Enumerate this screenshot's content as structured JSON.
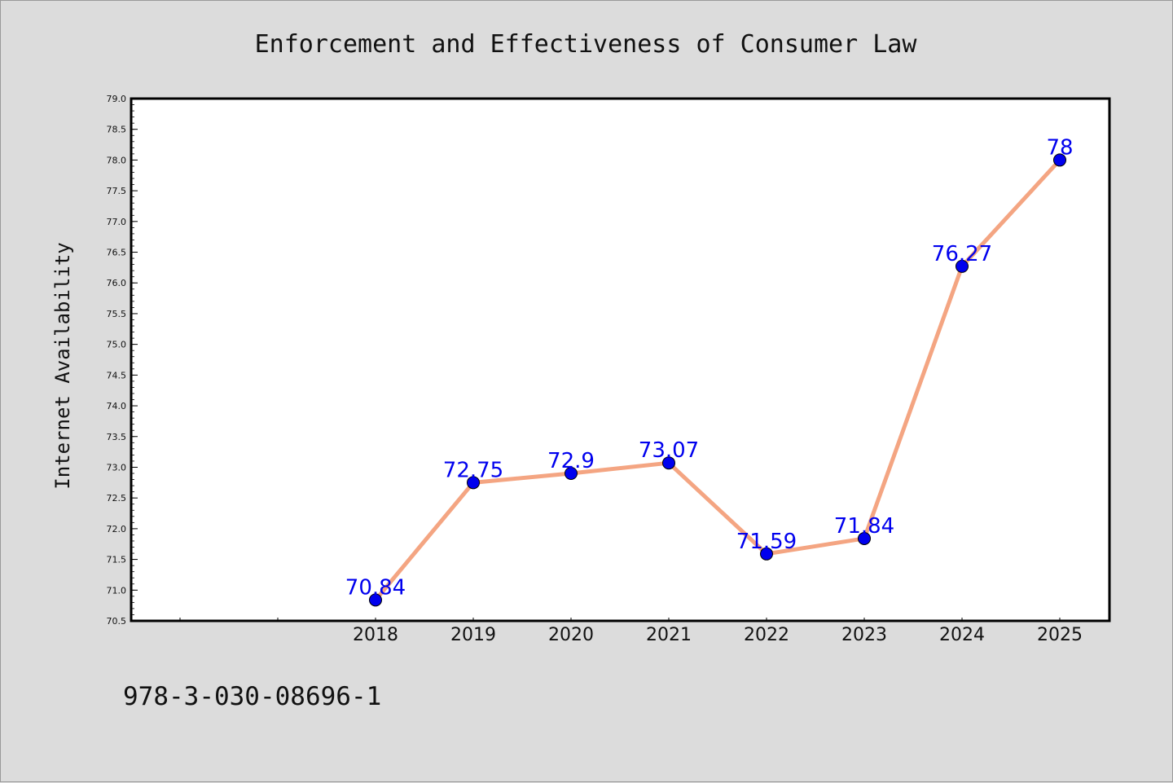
{
  "chart_data": {
    "type": "line",
    "title": "Enforcement and Effectiveness of Consumer Law",
    "xlabel": "",
    "ylabel": "Internet Availability",
    "categories": [
      "2018",
      "2019",
      "2020",
      "2021",
      "2022",
      "2023",
      "2024",
      "2025"
    ],
    "values": [
      70.84,
      72.75,
      72.9,
      73.07,
      71.59,
      71.84,
      76.27,
      78
    ],
    "data_labels": [
      "70.84",
      "72.75",
      "72.9",
      "73.07",
      "71.59",
      "71.84",
      "76.27",
      "78"
    ],
    "ylim": [
      70.5,
      79.0
    ],
    "yticks": [
      "70.5",
      "71.0",
      "71.5",
      "72.0",
      "72.5",
      "73.0",
      "73.5",
      "74.0",
      "74.5",
      "75.0",
      "75.5",
      "76.0",
      "76.5",
      "77.0",
      "77.5",
      "78.0",
      "78.5",
      "79.0"
    ],
    "line_color": "#f4a582",
    "marker_color": "#0000ee",
    "label_color": "#0000ee",
    "grid": false,
    "legend": "none"
  },
  "footnote": "978-3-030-08696-1"
}
